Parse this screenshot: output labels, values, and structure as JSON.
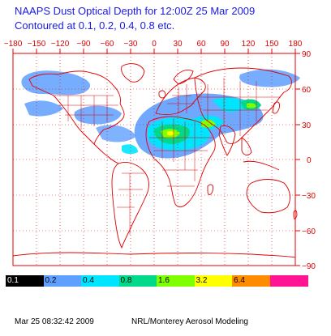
{
  "title": {
    "line1": "NAAPS Dust Optical Depth for 12:00Z 25 Mar 2009",
    "line2": "Contoured at 0.1, 0.2, 0.4, 0.8 etc."
  },
  "map": {
    "lon_ticks": [
      "−180",
      "−150",
      "−120",
      "−90",
      "−60",
      "−30",
      "0",
      "30",
      "60",
      "90",
      "120",
      "150",
      "180"
    ],
    "lat_ticks": [
      "90",
      "60",
      "30",
      "0",
      "−30",
      "−60",
      "−90"
    ],
    "line_color": "#e00000",
    "ocean_color": "#ffffff"
  },
  "legend": {
    "items": [
      {
        "label": "0.1",
        "color": "#000000",
        "text_color": "#ffffff"
      },
      {
        "label": "0.2",
        "color": "#5f9fff",
        "text_color": "#000000"
      },
      {
        "label": "0.4",
        "color": "#00e5ff",
        "text_color": "#000000"
      },
      {
        "label": "0.8",
        "color": "#00d98a",
        "text_color": "#000000"
      },
      {
        "label": "1.6",
        "color": "#7fff00",
        "text_color": "#000000"
      },
      {
        "label": "3.2",
        "color": "#ffff00",
        "text_color": "#000000"
      },
      {
        "label": "6.4",
        "color": "#ff8c00",
        "text_color": "#000000"
      },
      {
        "label": "",
        "color": "#ff1493",
        "text_color": "#000000"
      }
    ]
  },
  "footer": {
    "timestamp": "Mar 25 08:32:42 2009",
    "credit": "NRL/Monterey Aerosol Modeling"
  }
}
